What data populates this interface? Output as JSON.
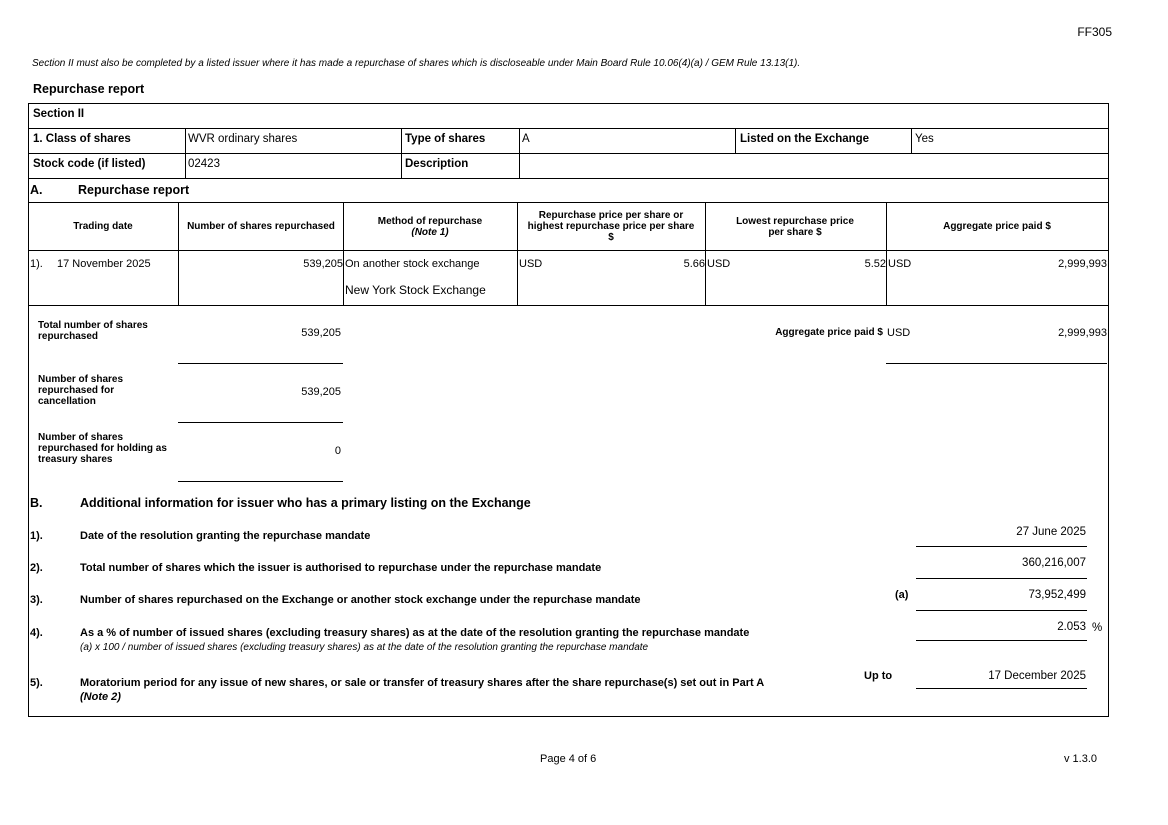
{
  "form_code": "FF305",
  "note": "Section II must also be completed by a listed issuer where it has made a repurchase of shares which is discloseable under Main Board Rule 10.06(4)(a) / GEM Rule 13.13(1).",
  "title": "Repurchase report",
  "section": "Section II",
  "info": {
    "class_label": "1. Class of shares",
    "class_value": "WVR ordinary shares",
    "type_label": "Type of shares",
    "type_value": "A",
    "listed_label": "Listed on the Exchange",
    "listed_value": "Yes",
    "code_label": "Stock code (if listed)",
    "code_value": "02423",
    "desc_label": "Description",
    "desc_value": ""
  },
  "part_a": {
    "letter": "A.",
    "heading": "Repurchase report",
    "columns": [
      "Trading date",
      "Number of shares repurchased",
      "Method of repurchase",
      "Repurchase price per share or highest repurchase price per share $",
      "Lowest repurchase price per share $",
      "Aggregate price paid $"
    ],
    "method_note": "(Note 1)",
    "rows": [
      {
        "index": "1).",
        "date": "17 November 2025",
        "shares": "539,205",
        "method": "On another stock exchange",
        "exchange": "New York Stock Exchange",
        "high_currency": "USD",
        "high_price": "5.66",
        "low_currency": "USD",
        "low_price": "5.52",
        "agg_currency": "USD",
        "agg_price": "2,999,993"
      }
    ],
    "total_label": "Total number of shares repurchased",
    "total_value": "539,205",
    "cancel_label": "Number of shares repurchased for cancellation",
    "cancel_value": "539,205",
    "treasury_label": "Number of shares repurchased for holding as treasury shares",
    "treasury_value": "0",
    "agg_label": "Aggregate price paid $",
    "agg_currency": "USD",
    "agg_value": "2,999,993"
  },
  "part_b": {
    "letter": "B.",
    "heading": "Additional information for issuer who has a primary listing on the Exchange",
    "items": [
      {
        "index": "1).",
        "label": "Date of the resolution granting the repurchase mandate",
        "value": "27 June 2025"
      },
      {
        "index": "2).",
        "label": "Total number of shares which the issuer is authorised to repurchase under the repurchase mandate",
        "value": "360,216,007"
      },
      {
        "index": "3).",
        "label": "Number of shares repurchased on the Exchange or another stock exchange under the repurchase mandate",
        "prefix": "(a)",
        "value": "73,952,499"
      },
      {
        "index": "4).",
        "label": "As a % of number of issued shares (excluding treasury shares) as at the date of the resolution granting the repurchase mandate",
        "sub": "(a) x 100 / number of issued shares (excluding treasury shares) as at the date of the resolution granting the repurchase mandate",
        "value": "2.053",
        "unit": "%"
      },
      {
        "index": "5).",
        "label": "Moratorium period for any issue of new shares, or sale or transfer of treasury shares after the share repurchase(s) set out in Part A",
        "sub": "(Note 2)",
        "prefix": "Up to",
        "value": "17 December 2025"
      }
    ]
  },
  "footer": {
    "page": "Page 4 of 6",
    "version": "v 1.3.0"
  }
}
